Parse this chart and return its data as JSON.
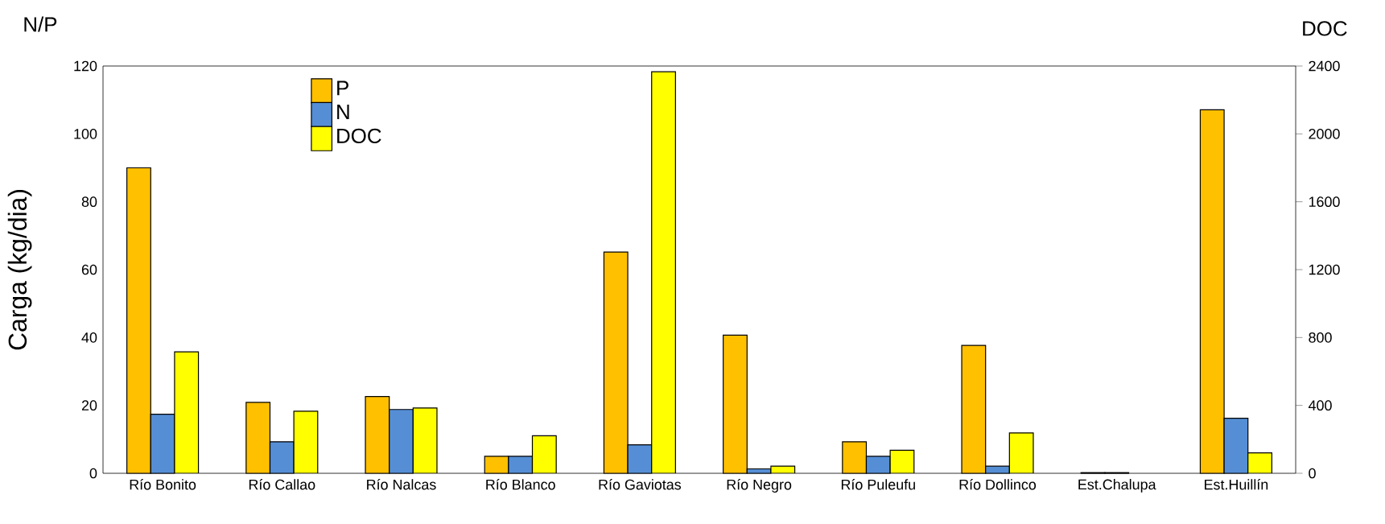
{
  "chart_data": {
    "type": "bar",
    "ylabel": "Carga  (kg/dia)",
    "y2label": "DOC",
    "annotations": [
      "N/P"
    ],
    "categories": [
      "Río Bonito",
      "Río Callao",
      "Río Nalcas",
      "Río Blanco",
      "Río Gaviotas",
      "Río Negro",
      "Río Puleufu",
      "Río Dollinco",
      "Est.Chalupa",
      "Est.Huillín"
    ],
    "series": [
      {
        "name": "P",
        "color": "#ffc000",
        "values": [
          90,
          20.9,
          22.6,
          5.0,
          65.2,
          40.7,
          9.3,
          37.7,
          0.2,
          107.1
        ]
      },
      {
        "name": "N",
        "color": "#558ed5",
        "values": [
          17.4,
          9.3,
          18.8,
          5.0,
          8.4,
          1.3,
          5.0,
          2.1,
          0.2,
          16.2
        ]
      },
      {
        "name": "DOC",
        "color": "#ffff00",
        "axis": "y2",
        "values": [
          716,
          366,
          385,
          221,
          2366,
          42,
          136,
          238,
          null,
          120
        ]
      }
    ],
    "ylim": [
      0,
      120
    ],
    "yticks": [
      0,
      20,
      40,
      60,
      80,
      100,
      120
    ],
    "y2lim": [
      0,
      2400
    ],
    "y2ticks": [
      0,
      400,
      800,
      1200,
      1600,
      2000,
      2400
    ],
    "legend": "top left",
    "grid": false
  }
}
